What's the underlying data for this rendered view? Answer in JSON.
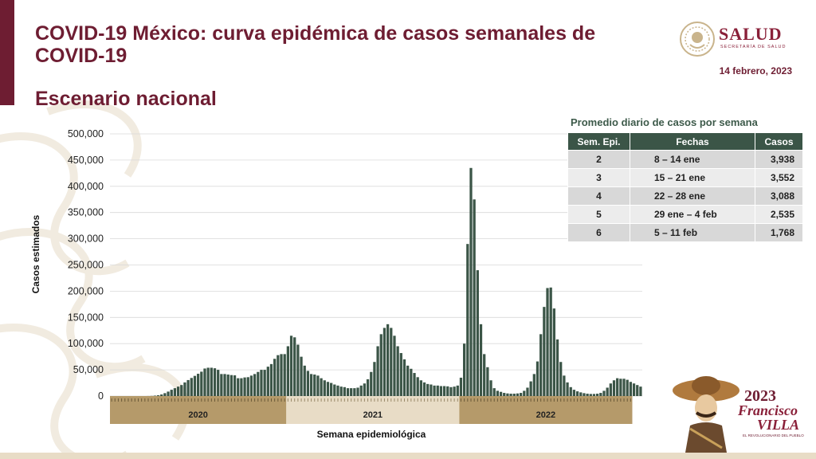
{
  "header": {
    "title": "COVID-19 México: curva epidémica de casos semanales de COVID-19",
    "subtitle": "Escenario nacional",
    "date": "14 febrero, 2023",
    "logo_name": "SALUD",
    "logo_sub": "SECRETARÍA DE SALUD"
  },
  "table": {
    "title": "Promedio diario de casos por semana",
    "headers": [
      "Sem. Epi.",
      "Fechas",
      "Casos"
    ],
    "rows": [
      {
        "sem": "2",
        "fechas": "8 – 14 ene",
        "casos": "3,938"
      },
      {
        "sem": "3",
        "fechas": "15 – 21 ene",
        "casos": "3,552"
      },
      {
        "sem": "4",
        "fechas": "22 – 28 ene",
        "casos": "3,088"
      },
      {
        "sem": "5",
        "fechas": "29 ene – 4 feb",
        "casos": "2,535"
      },
      {
        "sem": "6",
        "fechas": "5 – 11 feb",
        "casos": "1,768"
      }
    ]
  },
  "footer_logo": {
    "year": "2023",
    "name_line1": "Francisco",
    "name_line2": "VILLA",
    "tagline": "EL REVOLUCIONARIO DEL PUEBLO"
  },
  "colors": {
    "bar": "#3b5547",
    "brand": "#6e1d32",
    "year_band_dark": "#b59a6a",
    "year_band_light": "#e8dcc6"
  },
  "chart_data": {
    "type": "bar",
    "title": "",
    "xlabel": "Semana epidemiológica",
    "ylabel": "Casos estimados",
    "ylim": [
      0,
      500000
    ],
    "yticks": [
      0,
      50000,
      100000,
      150000,
      200000,
      250000,
      300000,
      350000,
      400000,
      450000,
      500000
    ],
    "ytick_labels": [
      "0",
      "50,000",
      "100,000",
      "150,000",
      "200,000",
      "250,000",
      "300,000",
      "350,000",
      "400,000",
      "450,000",
      "500,000"
    ],
    "grid": true,
    "year_groups": [
      {
        "label": "2020",
        "weeks": 53
      },
      {
        "label": "2021",
        "weeks": 52
      },
      {
        "label": "2022",
        "weeks": 52
      }
    ],
    "series": [
      {
        "values": [
          0,
          0,
          0,
          0,
          0,
          0,
          0,
          0,
          0,
          0,
          0,
          100,
          300,
          800,
          1500,
          3000,
          5500,
          8500,
          12000,
          15000,
          18000,
          21000,
          26000,
          30500,
          34500,
          38500,
          42500,
          46500,
          52500,
          54000,
          54000,
          53000,
          50000,
          42000,
          42000,
          41000,
          40000,
          39500,
          34000,
          34000,
          35500,
          36000,
          39000,
          42000,
          46000,
          50000,
          50000,
          56000,
          61000,
          71000,
          78000,
          80000,
          80000,
          95000,
          115000,
          112000,
          98000,
          75000,
          58000,
          48000,
          42000,
          41000,
          39000,
          34000,
          30000,
          27000,
          25000,
          22000,
          20000,
          18000,
          17000,
          15000,
          15000,
          15000,
          16000,
          20000,
          24000,
          32000,
          46000,
          65000,
          95000,
          118000,
          130000,
          137000,
          130000,
          115000,
          95000,
          82000,
          70000,
          58000,
          52000,
          44000,
          36000,
          30000,
          26000,
          23000,
          22000,
          20000,
          20000,
          19000,
          19000,
          18500,
          17000,
          18000,
          20000,
          35000,
          100000,
          290000,
          435000,
          375000,
          240000,
          137000,
          80000,
          55000,
          30000,
          15000,
          10000,
          8000,
          6000,
          5000,
          4500,
          4500,
          5000,
          6000,
          10000,
          16000,
          28000,
          42000,
          66000,
          118000,
          170000,
          206000,
          207000,
          167000,
          108000,
          65000,
          39000,
          26000,
          17000,
          12000,
          9000,
          7000,
          5500,
          4500,
          4000,
          4000,
          4500,
          6000,
          10000,
          16000,
          24000,
          30000,
          34000,
          33000,
          33000,
          31000,
          27000,
          24000,
          21000,
          18000
        ]
      }
    ]
  }
}
